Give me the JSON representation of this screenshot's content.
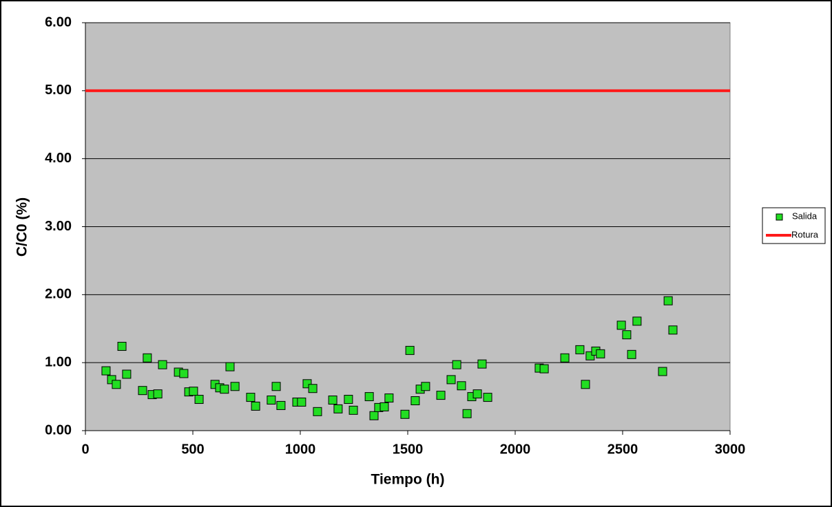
{
  "chart_data": {
    "type": "scatter",
    "x_label": "Tiempo (h)",
    "y_label": "C/C0 (%)",
    "xlim": [
      0,
      3000
    ],
    "xticks": [
      0,
      500,
      1000,
      1500,
      2000,
      2500,
      3000
    ],
    "ylim": [
      0,
      6
    ],
    "yticks": [
      {
        "value": 0,
        "label": "0.00"
      },
      {
        "value": 1,
        "label": "1.00"
      },
      {
        "value": 2,
        "label": "2.00"
      },
      {
        "value": 3,
        "label": "3.00"
      },
      {
        "value": 4,
        "label": "4.00"
      },
      {
        "value": 5,
        "label": "5.00"
      },
      {
        "value": 6,
        "label": "6.00"
      }
    ],
    "grid": true,
    "legend": "right",
    "series": [
      {
        "name": "Salida",
        "type": "scatter",
        "color": "#22dd22",
        "x": [
          96,
          122,
          144,
          170,
          192,
          266,
          288,
          311,
          337,
          359,
          433,
          458,
          481,
          503,
          529,
          603,
          625,
          647,
          673,
          696,
          769,
          792,
          865,
          888,
          910,
          984,
          1006,
          1032,
          1058,
          1080,
          1151,
          1176,
          1224,
          1247,
          1321,
          1343,
          1365,
          1391,
          1413,
          1487,
          1510,
          1535,
          1558,
          1583,
          1654,
          1702,
          1728,
          1750,
          1776,
          1798,
          1824,
          1846,
          1872,
          2112,
          2135,
          2231,
          2301,
          2327,
          2349,
          2375,
          2397,
          2494,
          2519,
          2542,
          2567,
          2686,
          2712,
          2734
        ],
        "values": [
          0.88,
          0.75,
          0.68,
          1.24,
          0.83,
          0.59,
          1.07,
          0.53,
          0.54,
          0.97,
          0.86,
          0.84,
          0.57,
          0.58,
          0.46,
          0.68,
          0.63,
          0.61,
          0.94,
          0.65,
          0.49,
          0.36,
          0.45,
          0.65,
          0.37,
          0.42,
          0.42,
          0.69,
          0.62,
          0.28,
          0.45,
          0.32,
          0.46,
          0.3,
          0.5,
          0.22,
          0.34,
          0.35,
          0.48,
          0.24,
          1.18,
          0.44,
          0.61,
          0.65,
          0.52,
          0.75,
          0.97,
          0.66,
          0.25,
          0.5,
          0.54,
          0.98,
          0.49,
          0.92,
          0.91,
          1.07,
          1.19,
          0.68,
          1.1,
          1.17,
          1.13,
          1.55,
          1.41,
          1.12,
          1.61,
          0.87,
          1.91,
          1.48
        ]
      },
      {
        "name": "Rotura",
        "type": "line",
        "color": "#ff1a1a",
        "x": [
          0,
          3000
        ],
        "values": [
          5,
          5
        ]
      }
    ]
  }
}
